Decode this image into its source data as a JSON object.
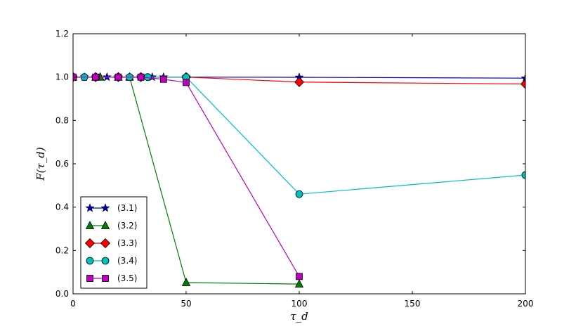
{
  "chart_data": {
    "type": "line",
    "title": "",
    "xlabel": "τ_d",
    "ylabel": "F(τ_d)",
    "xlim": [
      0,
      200
    ],
    "ylim": [
      0.0,
      1.2
    ],
    "xticks": [
      0,
      50,
      100,
      150,
      200
    ],
    "yticks": [
      0.0,
      0.2,
      0.4,
      0.6,
      0.8,
      1.0,
      1.2
    ],
    "ytick_labels": [
      "0.0",
      "0.2",
      "0.4",
      "0.6",
      "0.8",
      "1.0",
      "1.2"
    ],
    "grid": false,
    "legend_position": "lower-left",
    "series": [
      {
        "name": "(3.1)",
        "color": "#0000bf",
        "marker": "star",
        "x": [
          0,
          5,
          10,
          15,
          20,
          25,
          30,
          35,
          40,
          50,
          100,
          200
        ],
        "y": [
          1.0,
          1.0,
          1.0,
          1.0,
          1.0,
          1.0,
          1.0,
          1.0,
          1.0,
          1.0,
          0.999,
          0.995
        ]
      },
      {
        "name": "(3.2)",
        "color": "#007f00",
        "marker": "triangle",
        "x": [
          0,
          10,
          12,
          20,
          25,
          50,
          100
        ],
        "y": [
          1.0,
          1.0,
          1.0,
          1.0,
          1.0,
          0.052,
          0.045
        ]
      },
      {
        "name": "(3.3)",
        "color": "#ff0000",
        "marker": "diamond",
        "x": [
          0,
          10,
          20,
          30,
          50,
          100,
          200
        ],
        "y": [
          1.0,
          1.0,
          1.0,
          1.0,
          1.0,
          0.977,
          0.968
        ]
      },
      {
        "name": "(3.4)",
        "color": "#00bfbf",
        "marker": "circle",
        "x": [
          0,
          5,
          10,
          20,
          25,
          30,
          33,
          50,
          100,
          200
        ],
        "y": [
          1.0,
          1.0,
          1.0,
          1.0,
          1.0,
          1.0,
          1.0,
          1.0,
          0.46,
          0.548
        ]
      },
      {
        "name": "(3.5)",
        "color": "#bf00bf",
        "marker": "square",
        "x": [
          0,
          10,
          20,
          30,
          40,
          50,
          100
        ],
        "y": [
          1.0,
          1.0,
          1.0,
          1.0,
          0.99,
          0.975,
          0.08
        ]
      }
    ]
  }
}
